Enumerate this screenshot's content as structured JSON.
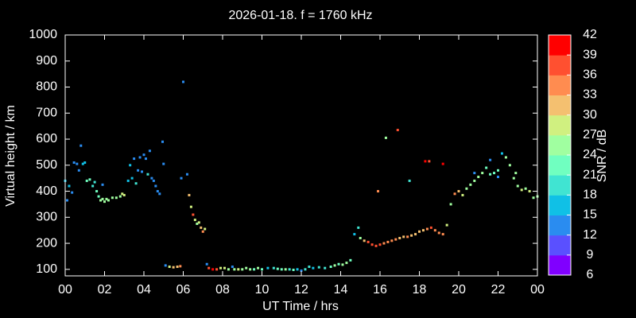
{
  "chart_data": {
    "type": "scatter",
    "title": "2026-01-18. f = 1760 kHz",
    "xlabel": "UT Time / hrs",
    "ylabel": "Virtual height / km",
    "xlim": [
      0,
      24
    ],
    "ylim": [
      75,
      1000
    ],
    "xticks": [
      {
        "value": 0,
        "label": "00"
      },
      {
        "value": 2,
        "label": "02"
      },
      {
        "value": 4,
        "label": "04"
      },
      {
        "value": 6,
        "label": "06"
      },
      {
        "value": 8,
        "label": "08"
      },
      10,
      12,
      14,
      16,
      18,
      20,
      22,
      {
        "value": 24,
        "label": "00"
      }
    ],
    "yticks": [
      100,
      200,
      300,
      400,
      500,
      600,
      700,
      800,
      900,
      1000
    ],
    "colorbar": {
      "label": "SNR / dB",
      "lim": [
        6,
        42
      ],
      "ticks": [
        6,
        9,
        12,
        15,
        18,
        21,
        24,
        27,
        30,
        33,
        36,
        39,
        42
      ],
      "colors": [
        "#8000ff",
        "#5a50ff",
        "#2a8cf0",
        "#10c0e6",
        "#40e4d2",
        "#70ffc0",
        "#a0ffa0",
        "#d0f080",
        "#f4c070",
        "#ff8c50",
        "#ff5030",
        "#ff0000"
      ]
    },
    "series": [
      {
        "x": [
          0.0,
          0.1,
          0.2,
          0.35,
          0.45,
          0.6,
          0.7,
          0.8,
          0.9,
          1.0,
          1.1,
          1.25,
          1.4,
          1.5,
          1.6,
          1.7,
          1.8,
          1.9,
          2.0,
          2.1,
          2.2,
          2.4,
          2.6,
          2.8,
          2.9,
          3.0,
          1.9,
          3.2,
          3.3,
          3.4,
          3.6,
          3.5,
          3.7,
          3.8,
          3.9,
          4.0,
          4.1,
          4.2,
          4.3,
          4.4,
          4.5,
          4.6,
          4.7,
          4.8,
          4.95,
          5.0,
          5.1,
          5.3,
          5.5,
          5.7,
          5.85,
          5.9,
          6.0,
          6.2,
          6.3,
          6.4,
          6.5,
          6.6,
          6.7,
          6.8,
          6.9,
          7.0,
          7.1,
          7.2,
          7.3,
          7.5,
          7.7,
          7.9,
          8.1,
          8.3,
          8.5,
          8.6,
          8.8,
          9.0,
          9.2,
          9.4,
          9.6,
          9.8,
          10.0,
          10.3,
          10.6,
          10.8,
          11.0,
          11.2,
          11.4,
          11.6,
          11.8,
          12.0,
          12.2,
          12.4,
          12.6,
          12.9,
          13.2,
          13.5,
          13.7,
          13.9,
          14.1,
          14.3,
          14.5,
          14.7,
          14.9,
          15.0,
          15.2,
          15.4,
          15.6,
          15.8,
          16.0,
          16.2,
          16.4,
          16.6,
          16.8,
          17.0,
          17.2,
          17.4,
          17.6,
          17.8,
          18.0,
          18.2,
          18.4,
          18.6,
          18.8,
          19.0,
          19.2,
          19.4,
          19.6,
          19.8,
          20.0,
          20.2,
          20.4,
          20.6,
          20.8,
          21.0,
          21.2,
          21.4,
          21.6,
          21.8,
          22.0,
          22.2,
          22.4,
          22.6,
          22.8,
          23.0,
          23.2,
          23.4,
          23.6,
          23.8,
          24.0,
          15.9,
          16.3,
          16.9,
          17.5,
          18.3,
          18.5,
          19.2,
          20.8,
          22.0,
          21.6,
          22.9
        ],
        "values": [
          440,
          365,
          420,
          395,
          510,
          505,
          480,
          575,
          505,
          510,
          440,
          445,
          420,
          435,
          400,
          380,
          365,
          370,
          360,
          370,
          365,
          375,
          375,
          380,
          390,
          385,
          425,
          440,
          500,
          450,
          430,
          525,
          480,
          530,
          475,
          540,
          525,
          465,
          555,
          450,
          440,
          420,
          400,
          390,
          590,
          505,
          115,
          110,
          108,
          110,
          112,
          450,
          820,
          465,
          385,
          340,
          310,
          290,
          275,
          280,
          260,
          245,
          255,
          120,
          105,
          100,
          100,
          105,
          105,
          100,
          110,
          100,
          100,
          100,
          105,
          100,
          100,
          105,
          100,
          105,
          105,
          102,
          100,
          100,
          100,
          98,
          100,
          95,
          100,
          110,
          105,
          108,
          105,
          110,
          115,
          120,
          118,
          125,
          135,
          235,
          260,
          220,
          210,
          205,
          195,
          190,
          195,
          200,
          205,
          210,
          215,
          220,
          225,
          225,
          230,
          235,
          245,
          250,
          255,
          260,
          250,
          240,
          235,
          270,
          350,
          390,
          400,
          385,
          410,
          425,
          440,
          455,
          470,
          490,
          465,
          470,
          480,
          545,
          530,
          500,
          450,
          420,
          405,
          410,
          400,
          375,
          380,
          400,
          605,
          635,
          440,
          515,
          515,
          505,
          470,
          455,
          520,
          470
        ],
        "snr": [
          15,
          12,
          15,
          12,
          12,
          12,
          12,
          12,
          15,
          15,
          21,
          21,
          18,
          18,
          21,
          21,
          24,
          24,
          24,
          24,
          24,
          24,
          24,
          24,
          27,
          27,
          12,
          15,
          15,
          15,
          18,
          12,
          12,
          12,
          12,
          12,
          12,
          18,
          12,
          12,
          12,
          12,
          12,
          12,
          12,
          12,
          12,
          27,
          30,
          30,
          33,
          12,
          12,
          12,
          30,
          27,
          36,
          27,
          24,
          27,
          30,
          33,
          27,
          12,
          36,
          39,
          36,
          27,
          27,
          24,
          12,
          24,
          27,
          24,
          24,
          24,
          21,
          24,
          21,
          15,
          18,
          21,
          21,
          24,
          18,
          21,
          15,
          12,
          18,
          18,
          15,
          18,
          18,
          21,
          24,
          21,
          24,
          24,
          21,
          15,
          18,
          24,
          30,
          36,
          36,
          36,
          36,
          33,
          33,
          33,
          33,
          30,
          30,
          33,
          30,
          30,
          30,
          30,
          33,
          36,
          33,
          33,
          33,
          27,
          24,
          33,
          30,
          27,
          24,
          24,
          24,
          24,
          24,
          21,
          21,
          21,
          21,
          15,
          24,
          24,
          24,
          24,
          27,
          24,
          27,
          24,
          24,
          33,
          24,
          36,
          18,
          39,
          36,
          39,
          12,
          12,
          12,
          24
        ]
      }
    ]
  }
}
